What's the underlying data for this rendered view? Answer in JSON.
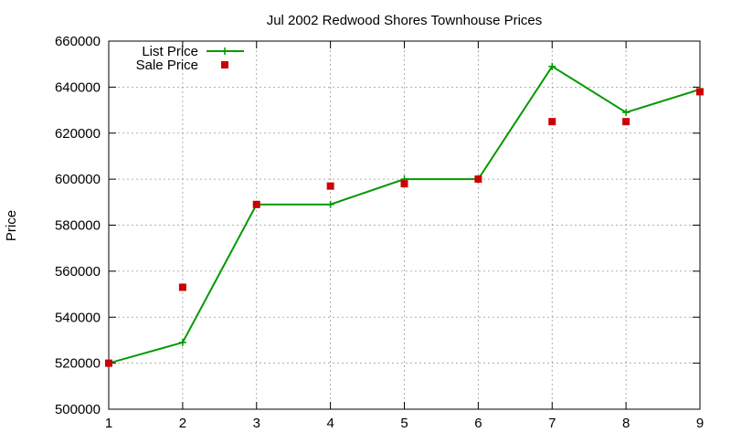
{
  "chart_data": {
    "type": "line",
    "title": "Jul 2002 Redwood Shores Townhouse Prices",
    "xlabel": "",
    "ylabel": "Price",
    "xlim": [
      1,
      9
    ],
    "ylim": [
      500000,
      660000
    ],
    "xticks": [
      1,
      2,
      3,
      4,
      5,
      6,
      7,
      8,
      9
    ],
    "yticks": [
      500000,
      520000,
      540000,
      560000,
      580000,
      600000,
      620000,
      640000,
      660000
    ],
    "grid": true,
    "legend_position": "top-left",
    "series": [
      {
        "name": "List Price",
        "style": "lines+points",
        "marker": "plus",
        "color": "#009900",
        "x": [
          1,
          2,
          3,
          4,
          5,
          6,
          7,
          8,
          9
        ],
        "y": [
          520000,
          529000,
          589000,
          589000,
          600000,
          600000,
          649000,
          629000,
          639000
        ]
      },
      {
        "name": "Sale Price",
        "style": "points",
        "marker": "square",
        "color": "#cc0000",
        "x": [
          1,
          2,
          3,
          4,
          5,
          6,
          7,
          8,
          9
        ],
        "y": [
          520000,
          553000,
          589000,
          597000,
          598000,
          600000,
          625000,
          625000,
          638000
        ]
      }
    ]
  }
}
